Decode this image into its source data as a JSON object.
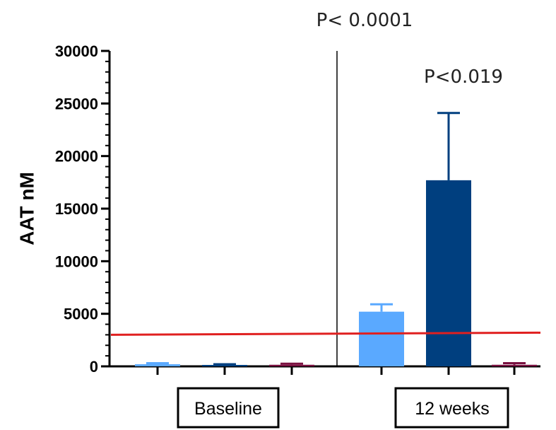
{
  "chart_data": {
    "type": "bar",
    "ylabel": "AAT nM",
    "ylim": [
      0,
      30000
    ],
    "yticks": [
      0,
      5000,
      10000,
      15000,
      20000,
      25000,
      30000
    ],
    "yticks_minor_per_major": 4,
    "categories": [
      "Baseline",
      "12 weeks"
    ],
    "series_colors": [
      "#5aa9ff",
      "#003f7f",
      "#7a1040"
    ],
    "bars": [
      {
        "category": "Baseline",
        "series": 0,
        "value": 200,
        "error": 100
      },
      {
        "category": "Baseline",
        "series": 1,
        "value": 100,
        "error": 100
      },
      {
        "category": "Baseline",
        "series": 2,
        "value": 150,
        "error": 100
      },
      {
        "category": "12 weeks",
        "series": 0,
        "value": 5200,
        "error": 700
      },
      {
        "category": "12 weeks",
        "series": 1,
        "value": 17700,
        "error": 6400
      },
      {
        "category": "12 weeks",
        "series": 2,
        "value": 150,
        "error": 150
      }
    ],
    "reference_line": {
      "y_start": 3000,
      "y_end": 3200,
      "color": "#e02020"
    },
    "annotations": [
      "P< 0.0001",
      "P<0.019"
    ],
    "divider_between_groups": true
  }
}
